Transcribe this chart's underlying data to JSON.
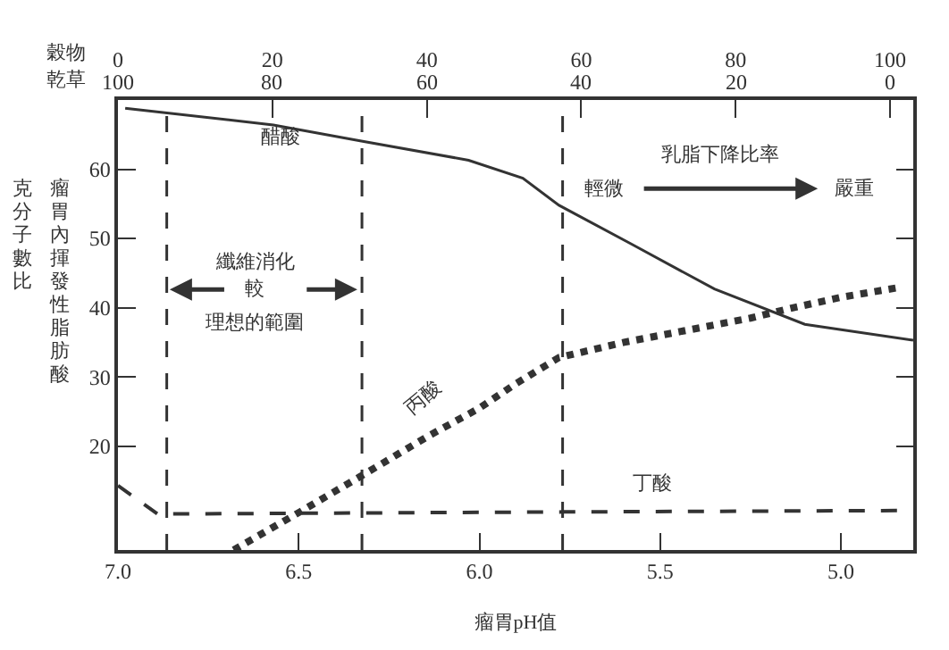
{
  "chart_data": {
    "type": "line",
    "xlabel": "瘤胃pH值",
    "ylabel": "瘤胃內揮發性脂肪酸克分子數比",
    "x2label": "穀物",
    "xlim": [
      7.0,
      4.8
    ],
    "xticks": [
      {
        "value": 7.0,
        "label": "7.0"
      },
      6.5,
      {
        "value": 6.0,
        "label": "6.0"
      },
      5.5,
      {
        "value": 5.0,
        "label": "5.0"
      }
    ],
    "x2lim": [
      0,
      103
    ],
    "x2ticks": [
      0,
      20,
      40,
      60,
      80,
      100
    ],
    "ylim": [
      5,
      70
    ],
    "yticks": [
      20,
      30,
      40,
      50,
      60
    ],
    "grid": false,
    "marker": "none",
    "series": [
      {
        "color": "#333333",
        "line_style": "solid",
        "x": [
          6.98,
          6.57,
          6.33,
          6.03,
          5.88,
          5.78,
          5.58,
          5.35,
          5.1,
          4.8
        ],
        "values": [
          68.8,
          66.4,
          64.1,
          61.3,
          58.7,
          54.8,
          49.2,
          42.7,
          37.6,
          35.3
        ]
      },
      {
        "color": "#333333",
        "line_style": "dotted",
        "x": [
          6.68,
          6.5,
          6.33,
          6.14,
          6.0,
          5.9,
          5.78,
          5.6,
          5.43,
          5.25,
          5.14,
          5.0,
          4.83
        ],
        "values": [
          5,
          10.4,
          15.6,
          21.5,
          25.5,
          29,
          32.8,
          35,
          36.7,
          38.5,
          39.9,
          41.5,
          43
        ]
      },
      {
        "color": "#333333",
        "line_style": "dashed",
        "x": [
          7.0,
          6.89,
          5.77,
          4.83
        ],
        "values": [
          14.3,
          10.2,
          10.5,
          10.7
        ]
      }
    ],
    "ref_lines": [
      {
        "axis": "x",
        "value": 6.865,
        "line_style": "dashed",
        "color": "#333333"
      },
      {
        "axis": "x",
        "value": 6.325,
        "line_style": "dashed",
        "color": "#333333"
      },
      {
        "axis": "x",
        "value": 5.77,
        "line_style": "dashed",
        "color": "#333333"
      }
    ],
    "annotations": [
      "醋酸",
      "丙酸",
      "丁酸",
      "纖維消化",
      "較",
      "理想的範圍",
      "乳脂下降比率",
      "輕微",
      "嚴重",
      "乾草",
      "100",
      "80",
      "60",
      "40",
      "20",
      "0"
    ]
  }
}
